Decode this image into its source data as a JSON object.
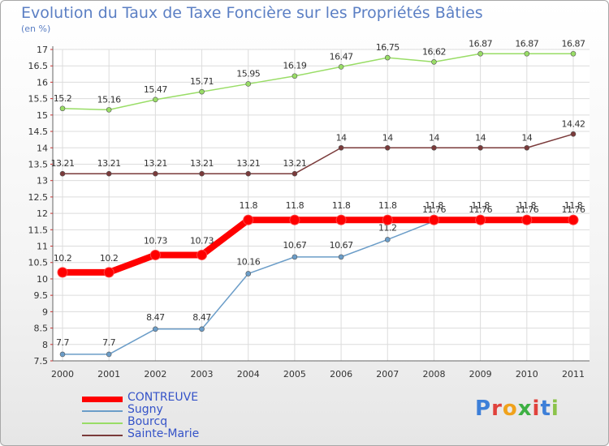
{
  "chart_data": {
    "type": "line",
    "title": "Evolution du Taux de Taxe Foncière sur les Propriétés Bâties",
    "subtitle": "(en %)",
    "xlabel": "",
    "ylabel": "",
    "categories": [
      "2000",
      "2001",
      "2002",
      "2003",
      "2004",
      "2005",
      "2006",
      "2007",
      "2008",
      "2009",
      "2010",
      "2011"
    ],
    "ylim": [
      7.5,
      17
    ],
    "yticks": [
      "7.5",
      "8",
      "8.5",
      "9",
      "9.5",
      "10",
      "10.5",
      "11",
      "11.5",
      "12",
      "12.5",
      "13",
      "13.5",
      "14",
      "14.5",
      "15",
      "15.5",
      "16",
      "16.5",
      "17"
    ],
    "grid": true,
    "legend_position": "bottom-left",
    "series": [
      {
        "name": "CONTREUVE",
        "color": "#ff0000",
        "values": [
          10.2,
          10.2,
          10.73,
          10.73,
          11.8,
          11.8,
          11.8,
          11.8,
          11.8,
          11.8,
          11.8,
          11.8
        ],
        "labels": [
          "10.2",
          "10.2",
          "10.73",
          "10.73",
          "11.8",
          "11.8",
          "11.8",
          "11.8",
          "11.8",
          "11.8",
          "11.8",
          "11.8"
        ]
      },
      {
        "name": "Sugny",
        "color": "#6b9dc8",
        "values": [
          7.7,
          7.7,
          8.47,
          8.47,
          10.16,
          10.67,
          10.67,
          11.2,
          11.76,
          11.76,
          11.76,
          11.76
        ],
        "labels": [
          "7.7",
          "7.7",
          "8.47",
          "8.47",
          "10.16",
          "10.67",
          "10.67",
          "11.2",
          "11.76",
          "11.76",
          "11.76",
          "11.76"
        ]
      },
      {
        "name": "Bourcq",
        "color": "#99dd66",
        "values": [
          15.2,
          15.16,
          15.47,
          15.71,
          15.95,
          16.19,
          16.47,
          16.75,
          16.62,
          16.87,
          16.87,
          16.87
        ],
        "labels": [
          "15.2",
          "15.16",
          "15.47",
          "15.71",
          "15.95",
          "16.19",
          "16.47",
          "16.75",
          "16.62",
          "16.87",
          "16.87",
          "16.87"
        ]
      },
      {
        "name": "Sainte-Marie",
        "color": "#7a3a3a",
        "values": [
          13.21,
          13.21,
          13.21,
          13.21,
          13.21,
          13.21,
          14,
          14,
          14,
          14,
          14,
          14.42
        ],
        "labels": [
          "13.21",
          "13.21",
          "13.21",
          "13.21",
          "13.21",
          "13.21",
          "14",
          "14",
          "14",
          "14",
          "14",
          "14.42"
        ]
      }
    ]
  },
  "logo": {
    "text": "Proxiti"
  }
}
